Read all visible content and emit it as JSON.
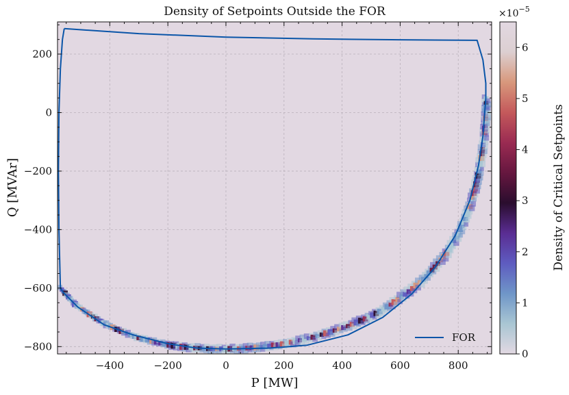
{
  "chart_data": {
    "type": "heatmap",
    "title": "Density of Setpoints Outside the FOR",
    "xlabel": "P [MW]",
    "ylabel": "Q [MVAr]",
    "xlim": [
      -580,
      915
    ],
    "ylim": [
      -825,
      310
    ],
    "xticks": [
      -400,
      -200,
      0,
      200,
      400,
      600,
      800
    ],
    "yticks": [
      200,
      0,
      -200,
      -400,
      -600,
      -800
    ],
    "xtick_labels": [
      "−400",
      "−200",
      "0",
      "200",
      "400",
      "600",
      "800"
    ],
    "ytick_labels": [
      "200",
      "0",
      "−200",
      "−400",
      "−600",
      "−800"
    ],
    "grid": true,
    "background_color": "#e2d8e2",
    "legend": {
      "position": "bottom-right",
      "entries": [
        {
          "label": "FOR",
          "color": "#0a55a8"
        }
      ]
    },
    "series": [
      {
        "name": "FOR",
        "type": "line",
        "color": "#0a55a8",
        "points": [
          [
            -557,
            287
          ],
          [
            -300,
            270
          ],
          [
            0,
            258
          ],
          [
            300,
            252
          ],
          [
            600,
            249
          ],
          [
            865,
            247
          ],
          [
            885,
            180
          ],
          [
            895,
            100
          ],
          [
            895,
            50
          ],
          [
            885,
            -80
          ],
          [
            870,
            -180
          ],
          [
            840,
            -300
          ],
          [
            790,
            -420
          ],
          [
            720,
            -530
          ],
          [
            640,
            -620
          ],
          [
            540,
            -700
          ],
          [
            420,
            -760
          ],
          [
            280,
            -795
          ],
          [
            150,
            -805
          ],
          [
            0,
            -808
          ],
          [
            -100,
            -805
          ],
          [
            -200,
            -790
          ],
          [
            -320,
            -760
          ],
          [
            -420,
            -725
          ],
          [
            -510,
            -665
          ],
          [
            -560,
            -615
          ],
          [
            -570,
            -600
          ],
          [
            -575,
            -400
          ],
          [
            -577,
            -200
          ],
          [
            -575,
            0
          ],
          [
            -570,
            150
          ],
          [
            -563,
            250
          ],
          [
            -557,
            287
          ]
        ]
      }
    ],
    "density_band": [
      [
        -565,
        -605
      ],
      [
        -520,
        -655
      ],
      [
        -470,
        -690
      ],
      [
        -420,
        -720
      ],
      [
        -360,
        -748
      ],
      [
        -300,
        -770
      ],
      [
        -240,
        -785
      ],
      [
        -180,
        -797
      ],
      [
        -120,
        -804
      ],
      [
        -60,
        -807
      ],
      [
        0,
        -808
      ],
      [
        60,
        -806
      ],
      [
        120,
        -802
      ],
      [
        180,
        -794
      ],
      [
        240,
        -782
      ],
      [
        300,
        -768
      ],
      [
        360,
        -750
      ],
      [
        420,
        -730
      ],
      [
        480,
        -705
      ],
      [
        530,
        -680
      ],
      [
        580,
        -648
      ],
      [
        630,
        -612
      ],
      [
        680,
        -570
      ],
      [
        720,
        -528
      ],
      [
        760,
        -480
      ],
      [
        795,
        -425
      ],
      [
        820,
        -375
      ],
      [
        840,
        -320
      ],
      [
        858,
        -260
      ],
      [
        872,
        -200
      ],
      [
        882,
        -140
      ],
      [
        890,
        -80
      ],
      [
        894,
        -30
      ],
      [
        896,
        10
      ],
      [
        896,
        60
      ]
    ],
    "colorbar": {
      "label": "Density of Critical Setpoints",
      "multiplier": "×10−5",
      "range": [
        0,
        6.5
      ],
      "ticks": [
        0,
        1,
        2,
        3,
        4,
        5,
        6
      ],
      "tick_labels": [
        "0",
        "1",
        "2",
        "3",
        "4",
        "5",
        "6"
      ],
      "colormap": [
        "#e2d8e2",
        "#a9c6d3",
        "#6f96c8",
        "#5e5cc0",
        "#5a2d93",
        "#2a0d2e",
        "#66173f",
        "#9a2b52",
        "#c4595b",
        "#d8987c",
        "#dccfd1",
        "#e2d8e2"
      ]
    }
  }
}
